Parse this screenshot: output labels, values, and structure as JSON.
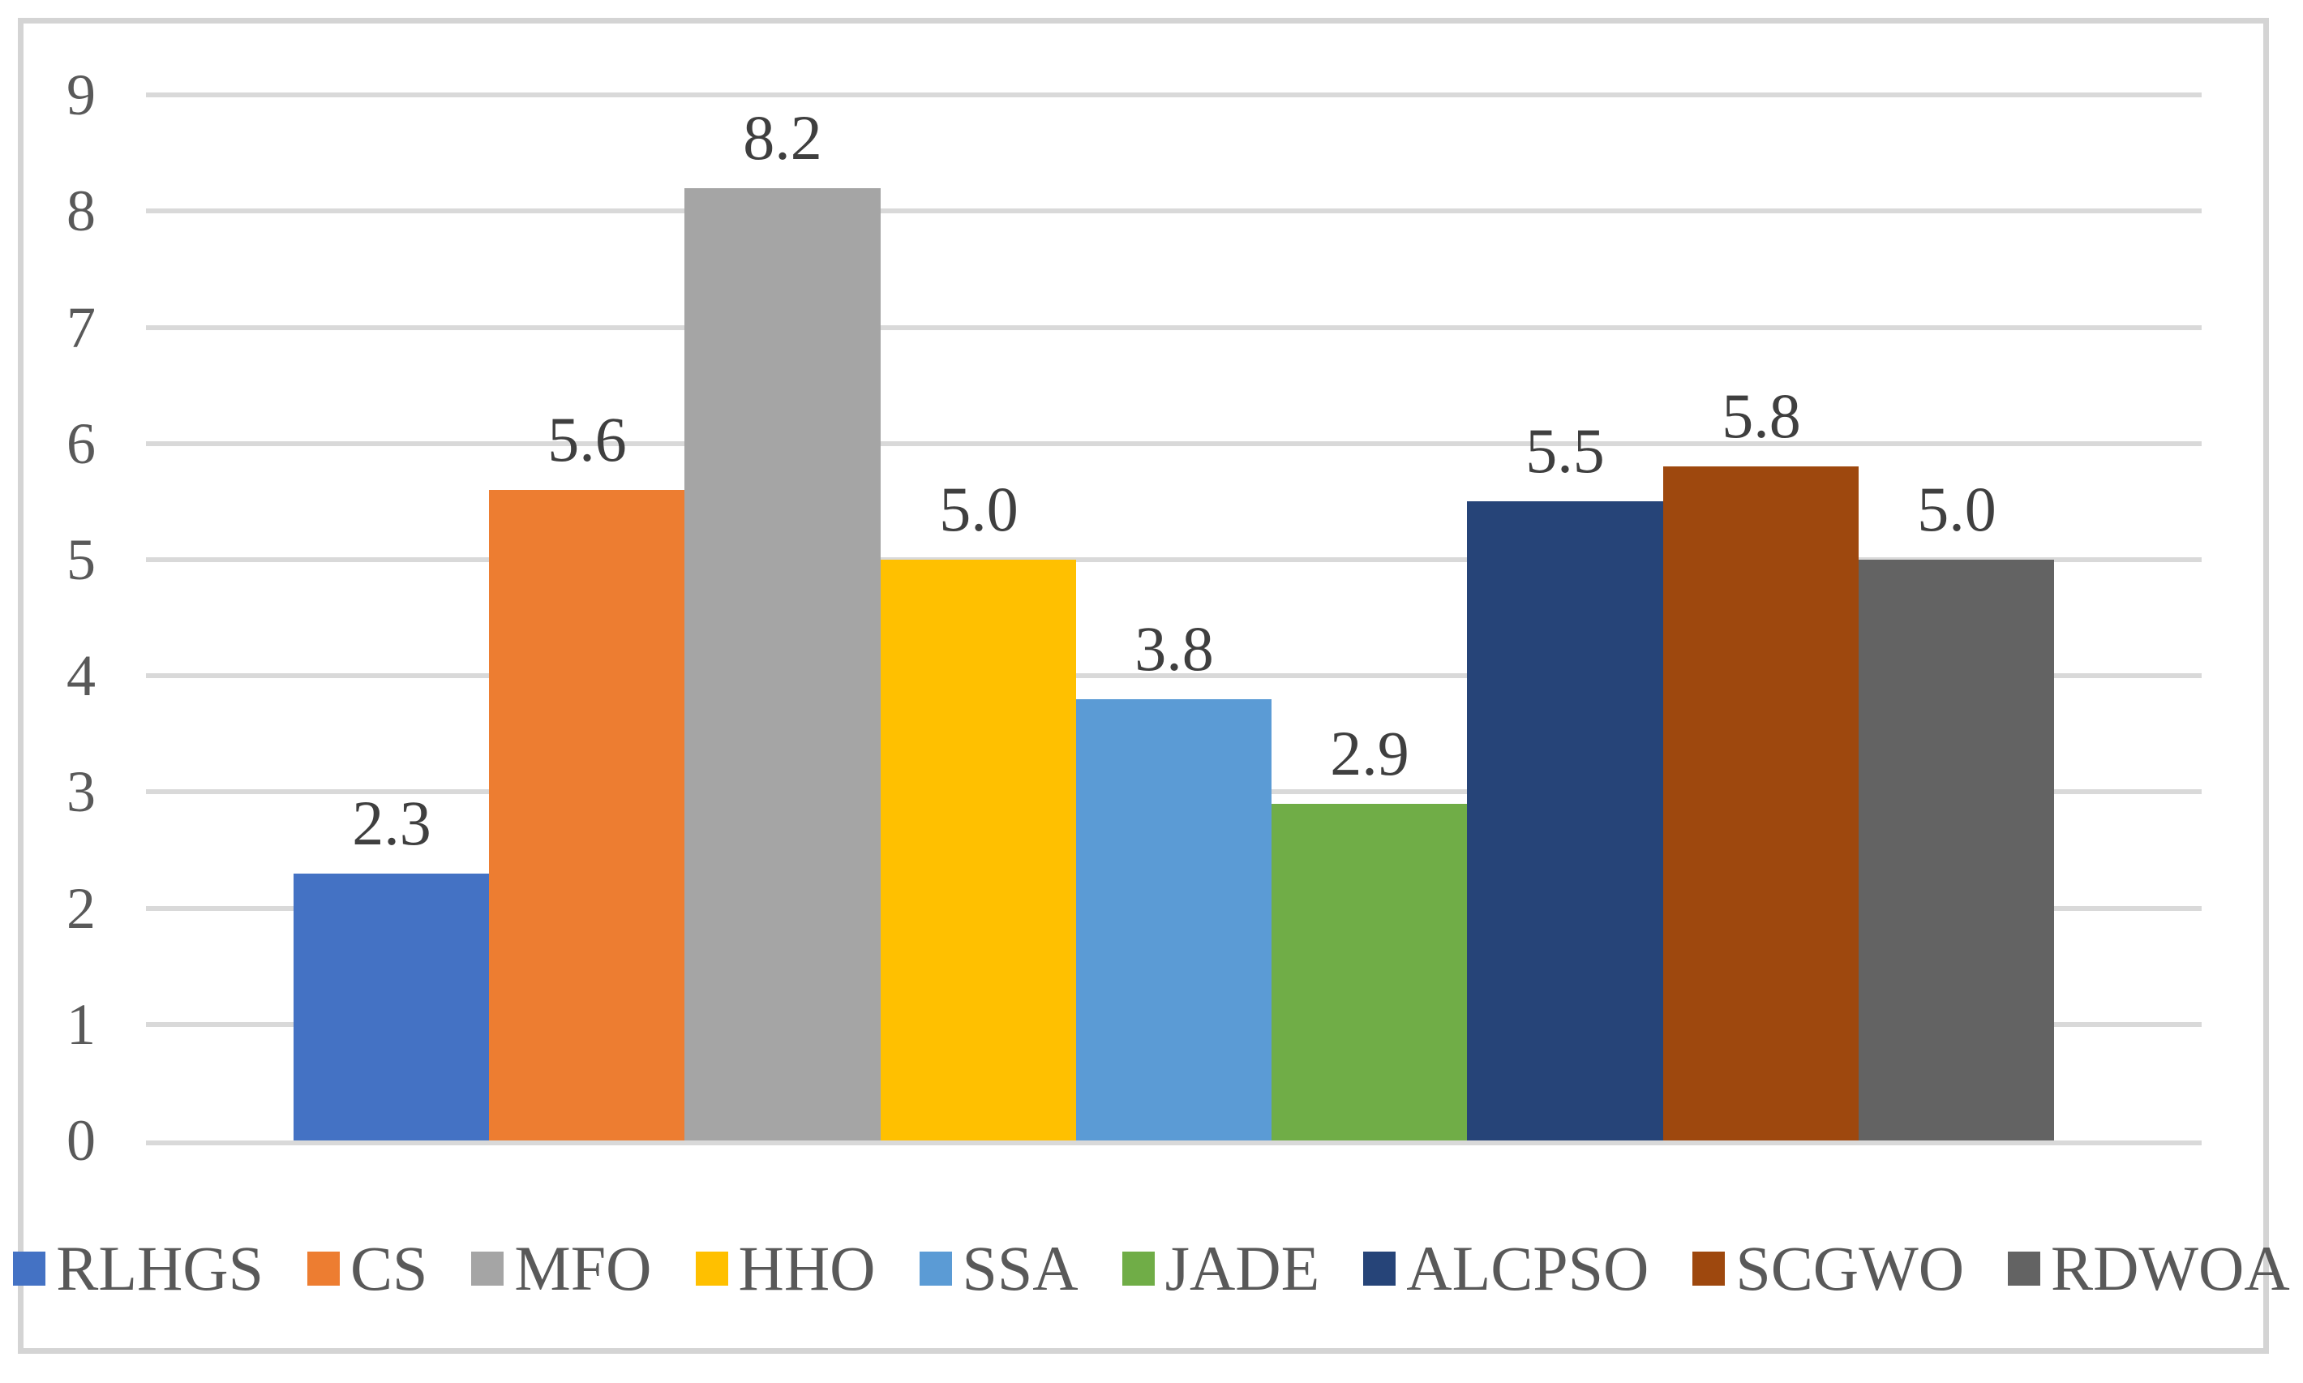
{
  "figure": {
    "background_color": "#ffffff",
    "border_color": "#d4d4d4"
  },
  "chart_data": {
    "type": "bar",
    "title": "",
    "xlabel": "",
    "ylabel": "",
    "categories": [
      "RLHGS",
      "CS",
      "MFO",
      "HHO",
      "SSA",
      "JADE",
      "ALCPSO",
      "SCGWO",
      "RDWOA"
    ],
    "values": [
      2.3,
      5.6,
      8.2,
      5.0,
      3.8,
      2.9,
      5.5,
      5.8,
      5.0
    ],
    "data_labels": [
      "2.3",
      "5.6",
      "8.2",
      "5.0",
      "3.8",
      "2.9",
      "5.5",
      "5.8",
      "5.0"
    ],
    "bar_colors": [
      "#4472c4",
      "#ed7d31",
      "#a5a5a5",
      "#ffc000",
      "#5b9bd5",
      "#70ad47",
      "#264478",
      "#9e480e",
      "#636363"
    ],
    "ylim": [
      0,
      9
    ],
    "ytick_step": 1,
    "ytick_labels": [
      "0",
      "1",
      "2",
      "3",
      "4",
      "5",
      "6",
      "7",
      "8",
      "9"
    ],
    "grid": true,
    "gridline_color": "#d9d9d9",
    "axis_line_color": "#d9d9d9",
    "axis_text_color": "#595959",
    "data_label_color": "#3f3f3f",
    "legend_position": "bottom",
    "legend_text_color": "#595959"
  }
}
